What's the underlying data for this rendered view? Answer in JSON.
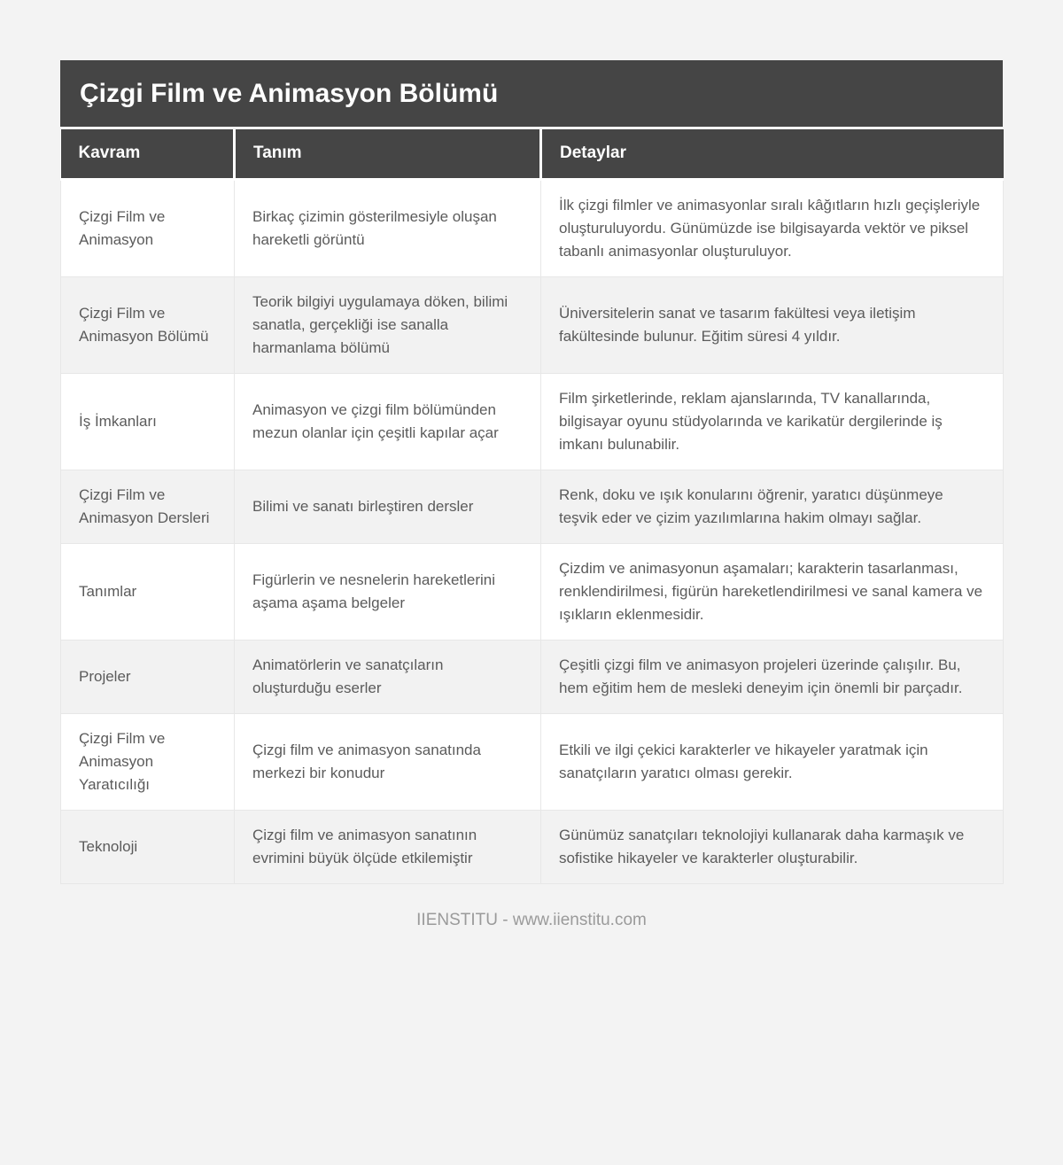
{
  "page": {
    "title": "Çizgi Film ve Animasyon Bölümü",
    "footer": "IIENSTITU - www.iienstitu.com"
  },
  "colors": {
    "header_bg": "#454545",
    "header_text": "#ffffff",
    "row_alt_bg": "#f2f2f2",
    "body_text": "#5b5b5b",
    "page_bg": "#f3f3f3",
    "footer_text": "#9a9a9a"
  },
  "table": {
    "columns": [
      "Kavram",
      "Tanım",
      "Detaylar"
    ],
    "rows": [
      {
        "kavram": "Çizgi Film ve Animasyon",
        "tanim": "Birkaç çizimin gösterilmesiyle oluşan hareketli görüntü",
        "detaylar": "İlk çizgi filmler ve animasyonlar sıralı kâğıtların hızlı geçişleriyle oluşturuluyordu. Günümüzde ise bilgisayarda vektör ve piksel tabanlı animasyonlar oluşturuluyor."
      },
      {
        "kavram": "Çizgi Film ve Animasyon Bölümü",
        "tanim": "Teorik bilgiyi uygulamaya döken, bilimi sanatla, gerçekliği ise sanalla harmanlama bölümü",
        "detaylar": "Üniversitelerin sanat ve tasarım fakültesi veya iletişim fakültesinde bulunur. Eğitim süresi 4 yıldır."
      },
      {
        "kavram": "İş İmkanları",
        "tanim": "Animasyon ve çizgi film bölümünden mezun olanlar için çeşitli kapılar açar",
        "detaylar": "Film şirketlerinde, reklam ajanslarında, TV kanallarında, bilgisayar oyunu stüdyolarında ve karikatür dergilerinde iş imkanı bulunabilir."
      },
      {
        "kavram": "Çizgi Film ve Animasyon Dersleri",
        "tanim": "Bilimi ve sanatı birleştiren dersler",
        "detaylar": "Renk, doku ve ışık konularını öğrenir, yaratıcı düşünmeye teşvik eder ve çizim yazılımlarına hakim olmayı sağlar."
      },
      {
        "kavram": "Tanımlar",
        "tanim": "Figürlerin ve nesnelerin hareketlerini aşama aşama belgeler",
        "detaylar": "Çizdim ve animasyonun aşamaları; karakterin tasarlanması, renklendirilmesi, figürün hareketlendirilmesi ve sanal kamera ve ışıkların eklenmesidir."
      },
      {
        "kavram": "Projeler",
        "tanim": "Animatörlerin ve sanatçıların oluşturduğu eserler",
        "detaylar": "Çeşitli çizgi film ve animasyon projeleri üzerinde çalışılır. Bu, hem eğitim hem de mesleki deneyim için önemli bir parçadır."
      },
      {
        "kavram": "Çizgi Film ve Animasyon Yaratıcılığı",
        "tanim": "Çizgi film ve animasyon sanatında merkezi bir konudur",
        "detaylar": "Etkili ve ilgi çekici karakterler ve hikayeler yaratmak için sanatçıların yaratıcı olması gerekir."
      },
      {
        "kavram": "Teknoloji",
        "tanim": "Çizgi film ve animasyon sanatının evrimini büyük ölçüde etkilemiştir",
        "detaylar": "Günümüz sanatçıları teknolojiyi kullanarak daha karmaşık ve sofistike hikayeler ve karakterler oluşturabilir."
      }
    ]
  }
}
